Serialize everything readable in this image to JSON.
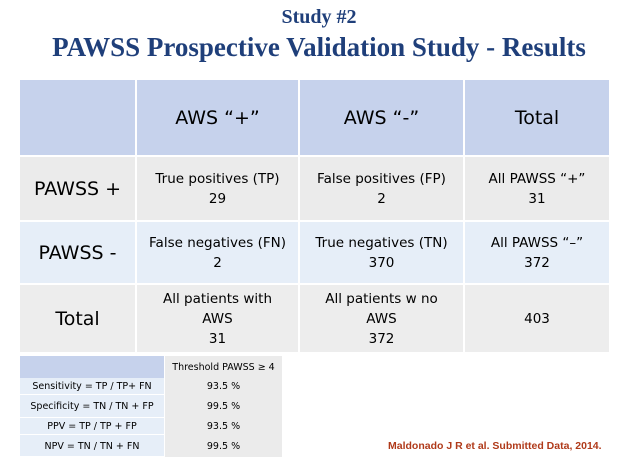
{
  "title": {
    "line1": "Study #2",
    "line2": "PAWSS Prospective Validation Study - Results"
  },
  "table": {
    "headers": [
      "",
      "AWS “+”",
      "AWS “-”",
      "Total"
    ],
    "rows": [
      {
        "label": "PAWSS +",
        "cells": [
          {
            "lines": [
              "True positives (TP)",
              "29"
            ]
          },
          {
            "lines": [
              "False positives (FP)",
              "2"
            ]
          },
          {
            "lines": [
              "All PAWSS “+”",
              "31"
            ]
          }
        ]
      },
      {
        "label": "PAWSS -",
        "cells": [
          {
            "lines": [
              "False negatives (FN)",
              "2"
            ]
          },
          {
            "lines": [
              "True negatives (TN)",
              "370"
            ]
          },
          {
            "lines": [
              "All PAWSS “–”",
              "372"
            ]
          }
        ]
      },
      {
        "label": "Total",
        "cells": [
          {
            "lines": [
              "All patients with",
              "AWS",
              "31"
            ]
          },
          {
            "lines": [
              "All patients w no",
              "AWS",
              "372"
            ]
          },
          {
            "lines": [
              "403"
            ]
          }
        ]
      }
    ]
  },
  "metrics": {
    "header": "Threshold PAWSS ≥ 4",
    "rows": [
      {
        "label": "Sensitivity = TP / TP+ FN",
        "value": "93.5 %"
      },
      {
        "label": "Specificity = TN / TN + FP",
        "value": "99.5 %"
      },
      {
        "label": "PPV = TP / TP + FP",
        "value": "93.5 %"
      },
      {
        "label": "NPV = TN / TN + FN",
        "value": "99.5 %"
      }
    ]
  },
  "citation": "Maldonado J R et al. Submitted Data, 2014.",
  "colors": {
    "title": "#1f3f7a",
    "header_bg": "#c6d2ec",
    "citation": "#b03a1a"
  }
}
